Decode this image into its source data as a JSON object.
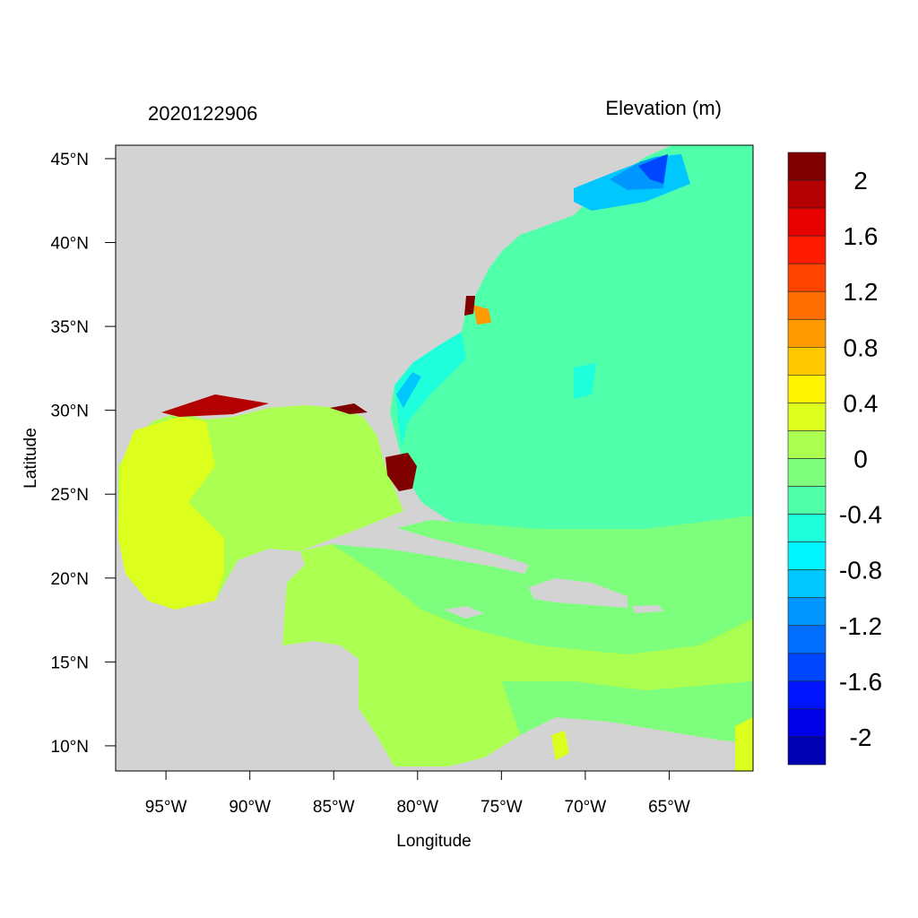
{
  "title_left": "2020122906",
  "title_right": "Elevation (m)",
  "xlabel": "Longitude",
  "ylabel": "Latitude",
  "map": {
    "lon_range": [
      -98,
      -60
    ],
    "lat_range": [
      8.5,
      45.8
    ],
    "x_ticks": [
      {
        "value": -95,
        "label": "95°W"
      },
      {
        "value": -90,
        "label": "90°W"
      },
      {
        "value": -85,
        "label": "85°W"
      },
      {
        "value": -80,
        "label": "80°W"
      },
      {
        "value": -75,
        "label": "75°W"
      },
      {
        "value": -70,
        "label": "70°W"
      },
      {
        "value": -65,
        "label": "65°W"
      }
    ],
    "y_ticks": [
      {
        "value": 45,
        "label": "45°N"
      },
      {
        "value": 40,
        "label": "40°N"
      },
      {
        "value": 35,
        "label": "35°N"
      },
      {
        "value": 30,
        "label": "30°N"
      },
      {
        "value": 25,
        "label": "25°N"
      },
      {
        "value": 20,
        "label": "20°N"
      },
      {
        "value": 15,
        "label": "15°N"
      },
      {
        "value": 10,
        "label": "10°N"
      }
    ],
    "land_color": "#D3D3D3"
  },
  "colorbar": {
    "colors": [
      "#800000",
      "#B40000",
      "#E60000",
      "#FF1A00",
      "#FF4500",
      "#FF6E00",
      "#FF9A00",
      "#FFC800",
      "#FFF500",
      "#DCFF1E",
      "#AAFF50",
      "#7DFF7D",
      "#50FFAA",
      "#1EFFDC",
      "#00F5FF",
      "#00C8FF",
      "#0096FF",
      "#006EFF",
      "#0046FF",
      "#0014FF",
      "#0000E6",
      "#0000B4"
    ],
    "labels": [
      "2",
      "1.6",
      "1.2",
      "0.8",
      "0.4",
      "0",
      "-0.4",
      "-0.8",
      "-1.2",
      "-1.6",
      "-2"
    ]
  }
}
